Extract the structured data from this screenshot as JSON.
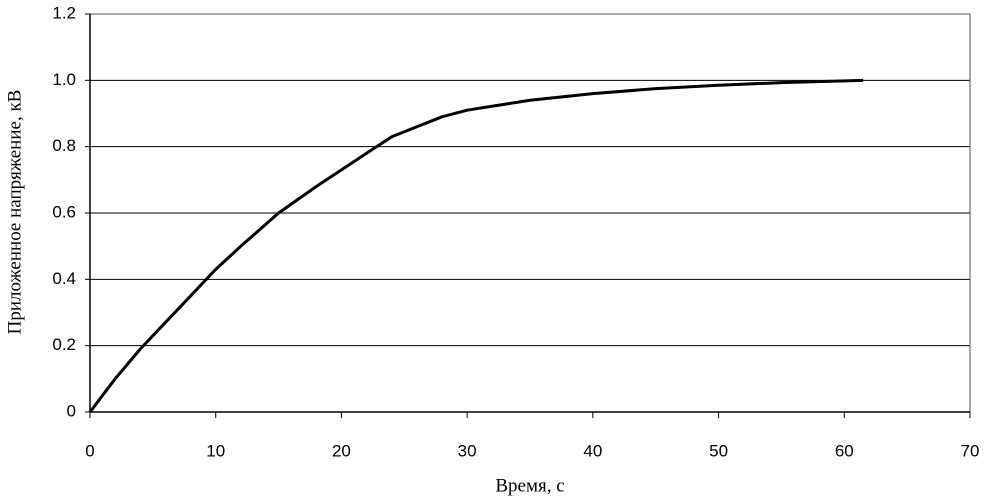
{
  "chart_data": {
    "type": "line",
    "x_label": "Время, с",
    "y_label": "Приложенное напряжение, кВ",
    "x": [
      0,
      2,
      4,
      6,
      8,
      10,
      12,
      15,
      18,
      20,
      22,
      24,
      26,
      28,
      30,
      35,
      40,
      45,
      50,
      55,
      61.5
    ],
    "series": [
      {
        "color": "#000000",
        "values": [
          0,
          0.1,
          0.19,
          0.27,
          0.35,
          0.43,
          0.5,
          0.6,
          0.68,
          0.73,
          0.78,
          0.83,
          0.86,
          0.89,
          0.91,
          0.94,
          0.96,
          0.975,
          0.985,
          0.993,
          1.0
        ]
      }
    ],
    "xlim": [
      0,
      70
    ],
    "xticks": [
      0,
      10,
      20,
      30,
      40,
      50,
      60,
      70
    ],
    "ylim": [
      0,
      1.2
    ],
    "yticks": [
      0,
      0.2,
      0.4,
      0.6,
      0.8,
      {
        "value": 1,
        "label": "1.0"
      },
      1.2
    ],
    "grid": true
  }
}
